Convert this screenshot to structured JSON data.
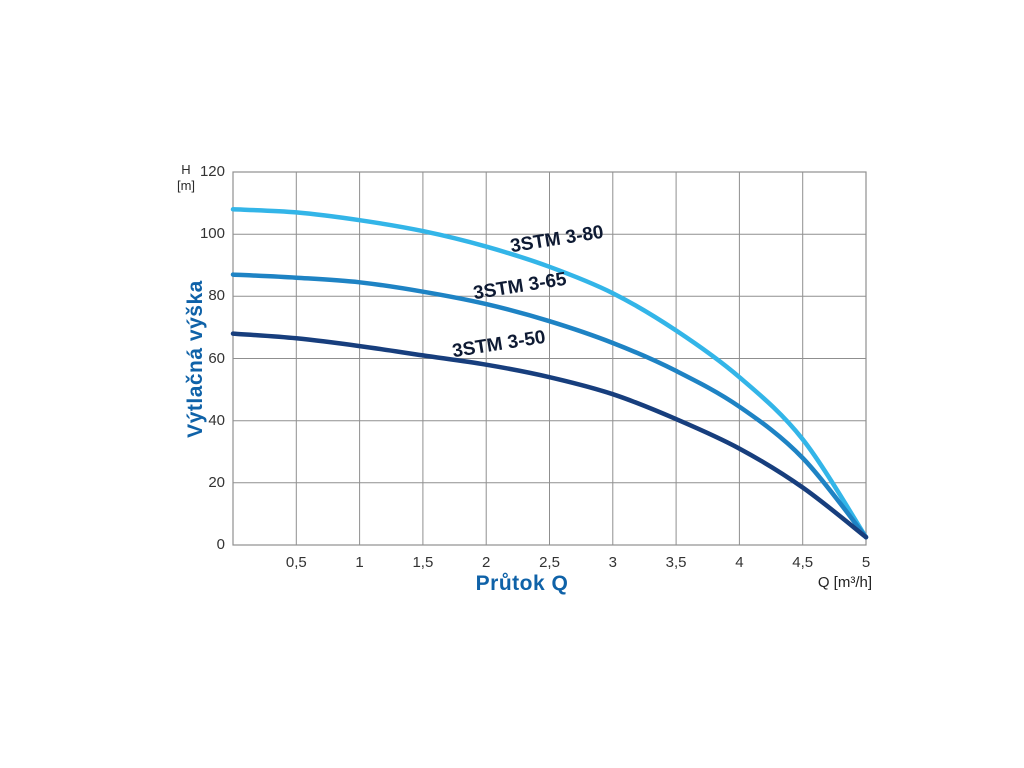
{
  "page": {
    "background_color": "#ffffff"
  },
  "axes": {
    "y_unit": [
      "H",
      "[m]"
    ],
    "x_unit": "Q [m³/h]"
  },
  "colors": {
    "axis_title": "#0f62a8",
    "tick_label": "#333333",
    "curve_label": "#0e1a33",
    "grid_line": "#8f8f8f",
    "plot_border": "#8f8f8f"
  },
  "chart_data": {
    "type": "line",
    "title": "",
    "xlabel": "Průtok Q",
    "ylabel": "Výtlačná výška",
    "xlim": [
      0,
      5
    ],
    "ylim": [
      0,
      120
    ],
    "grid": true,
    "x_grid_values": [
      0,
      0.5,
      1,
      1.5,
      2,
      2.5,
      3,
      3.5,
      4,
      4.5,
      5
    ],
    "y_grid_values": [
      0,
      20,
      40,
      60,
      80,
      100,
      120
    ],
    "x_ticks": [
      {
        "value": 0.5,
        "label": "0,5"
      },
      {
        "value": 1,
        "label": "1"
      },
      {
        "value": 1.5,
        "label": "1,5"
      },
      {
        "value": 2,
        "label": "2"
      },
      {
        "value": 2.5,
        "label": "2,5"
      },
      {
        "value": 3,
        "label": "3"
      },
      {
        "value": 3.5,
        "label": "3,5"
      },
      {
        "value": 4,
        "label": "4"
      },
      {
        "value": 4.5,
        "label": "4,5"
      },
      {
        "value": 5,
        "label": "5"
      }
    ],
    "y_ticks": [
      {
        "value": 0,
        "label": "0"
      },
      {
        "value": 20,
        "label": "20"
      },
      {
        "value": 40,
        "label": "40"
      },
      {
        "value": 60,
        "label": "60"
      },
      {
        "value": 80,
        "label": "80"
      },
      {
        "value": 100,
        "label": "100"
      },
      {
        "value": 120,
        "label": "120"
      }
    ],
    "x": [
      0,
      0.5,
      1,
      1.5,
      2,
      2.5,
      3,
      3.5,
      4,
      4.5,
      5
    ],
    "series": [
      {
        "name": "3STM 3-80",
        "color": "#33b5e8",
        "stroke_width": 4.5,
        "values": [
          108,
          107,
          104.5,
          101,
          96,
          89.5,
          81,
          69,
          54,
          34,
          2.5
        ],
        "label_anchor": {
          "q": 2.56,
          "h": 98,
          "rotation_deg": -9
        }
      },
      {
        "name": "3STM 3-65",
        "color": "#1e83c4",
        "stroke_width": 4.5,
        "values": [
          87,
          86,
          84.5,
          81.5,
          77.5,
          72,
          65,
          56,
          44.5,
          28,
          2.5
        ],
        "label_anchor": {
          "q": 2.27,
          "h": 83,
          "rotation_deg": -9
        }
      },
      {
        "name": "3STM 3-50",
        "color": "#173e7d",
        "stroke_width": 4.5,
        "values": [
          68,
          66.5,
          64,
          61,
          58,
          54,
          48.5,
          40.5,
          31,
          18.5,
          2.5
        ],
        "label_anchor": {
          "q": 2.1,
          "h": 64.5,
          "rotation_deg": -9
        }
      }
    ]
  }
}
